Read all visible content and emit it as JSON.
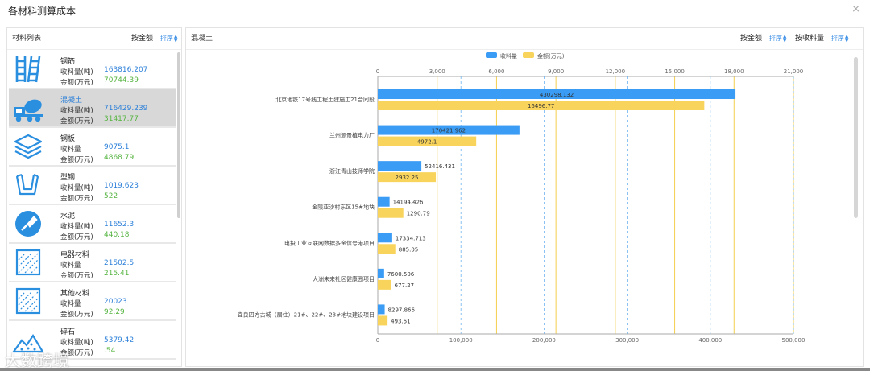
{
  "window": {
    "title": "各材料测算成本",
    "close": "×"
  },
  "left_panel": {
    "title": "材料列表",
    "sort_key": "按金额",
    "sort_label": "排序",
    "items": [
      {
        "name": "钢筋",
        "row1_key": "收料量(吨)",
        "row1_val": "163816.207",
        "row2_key": "金额(万元)",
        "row2_val": "70744.39",
        "icon": "rebar-icon"
      },
      {
        "name": "混凝土",
        "row1_key": "收料量(吨)",
        "row1_val": "716429.239",
        "row2_key": "金额(万元)",
        "row2_val": "31417.77",
        "icon": "concrete-mixer-icon"
      },
      {
        "name": "钢板",
        "row1_key": "收料量",
        "row1_val": "9075.1",
        "row2_key": "金额(万元)",
        "row2_val": "4868.79",
        "icon": "steel-plate-icon"
      },
      {
        "name": "型钢",
        "row1_key": "收料量(吨)",
        "row1_val": "1019.623",
        "row2_key": "金额(万元)",
        "row2_val": "522",
        "icon": "section-steel-icon"
      },
      {
        "name": "水泥",
        "row1_key": "收料量(吨)",
        "row1_val": "11652.3",
        "row2_key": "金额(万元)",
        "row2_val": "440.18",
        "icon": "cement-icon"
      },
      {
        "name": "电器材料",
        "row1_key": "收料量",
        "row1_val": "21502.5",
        "row2_key": "金额(万元)",
        "row2_val": "215.41",
        "icon": "electric-material-icon"
      },
      {
        "name": "其他材料",
        "row1_key": "收料量",
        "row1_val": "20023",
        "row2_key": "金额(万元)",
        "row2_val": "92.29",
        "icon": "other-material-icon"
      },
      {
        "name": "碎石",
        "row1_key": "收料量(吨)",
        "row1_val": "5379.42",
        "row2_key": "金额(万元)",
        "row2_val": ".54",
        "icon": "gravel-icon"
      }
    ],
    "selected_index": 1
  },
  "right_panel": {
    "title": "混凝土",
    "sort1_key": "按金额",
    "sort1_label": "排序",
    "sort2_key": "按收料量",
    "sort2_label": "排序"
  },
  "watermark": "大数跨境",
  "colors": {
    "blue": "#3a9cf5",
    "yellow": "#f9d45c",
    "accent": "#2b7fd9",
    "green": "#55b440"
  },
  "chart_data": {
    "type": "bar",
    "orientation": "horizontal",
    "legend": [
      "收料量",
      "金额(万元)"
    ],
    "legend_position": "top-center",
    "categories": [
      "北京地铁17号线工程土建施工21合同段",
      "兰州源景植电力厂",
      "浙江青山技师学院",
      "金陵亚沙村东区15#地块",
      "电投工业互联网数据多金信号港项目",
      "大洲未来社区健康园项目",
      "宜良四方古城（居住）21#、22#、23#地块建设项目"
    ],
    "series": [
      {
        "name": "收料量",
        "axis": "bottom",
        "values": [
          430298.132,
          170421.962,
          52416.431,
          14194.426,
          17334.713,
          7600.506,
          8297.866
        ],
        "labels": [
          "430298.132",
          "170421.962",
          "52416.431",
          "14194.426",
          "17334.713",
          "7600.506",
          "8297.866"
        ]
      },
      {
        "name": "金额(万元)",
        "axis": "top",
        "values": [
          16496.77,
          4972.1,
          2932.25,
          1290.79,
          885.05,
          677.27,
          493.51
        ],
        "labels": [
          "16496.77",
          "4972.1",
          "2932.25",
          "1290.79",
          "885.05",
          "677.27",
          "493.51"
        ]
      }
    ],
    "top_axis": {
      "min": 0,
      "max": 21000,
      "ticks": [
        "0",
        "3,000",
        "6,000",
        "9,000",
        "12,000",
        "15,000",
        "18,000",
        "21,000"
      ]
    },
    "bottom_axis": {
      "min": 0,
      "max": 500000,
      "ticks": [
        "0",
        "100,000",
        "200,000",
        "300,000",
        "400,000",
        "500,000"
      ]
    },
    "grid": true
  }
}
